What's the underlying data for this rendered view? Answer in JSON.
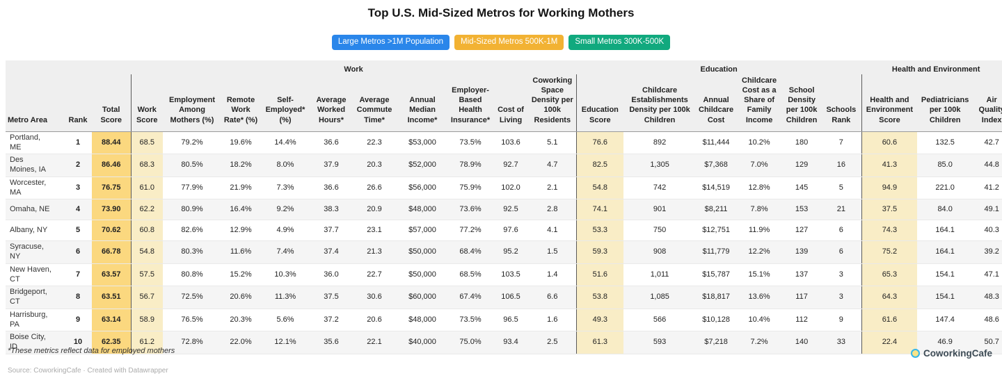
{
  "title": "Top U.S. Mid-Sized Metros for Working Mothers",
  "tabs": [
    {
      "label": "Large Metros >1M Population",
      "color": "#2a86ea",
      "active": false
    },
    {
      "label": "Mid-Sized Metros 500K-1M",
      "color": "#f2b233",
      "active": true
    },
    {
      "label": "Small Metros 300K-500K",
      "color": "#11a97e",
      "active": false
    }
  ],
  "chart_data": {
    "type": "table",
    "title": "Top U.S. Mid-Sized Metros for Working Mothers",
    "column_groups": [
      {
        "label": "",
        "span": 3
      },
      {
        "label": "Work",
        "span": 10
      },
      {
        "label": "Education",
        "span": 6
      },
      {
        "label": "Health and Environment",
        "span": 3
      }
    ],
    "columns": [
      "Metro Area",
      "Rank",
      "Total Score",
      "Work Score",
      "Employment Among Mothers (%)",
      "Remote Work Rate* (%)",
      "Self-Employed* (%)",
      "Average Worked Hours*",
      "Average Commute Time*",
      "Annual Median Income*",
      "Employer-Based Health Insurance*",
      "Cost of Living",
      "Coworking Space Density per 100k Residents",
      "Education Score",
      "Childcare Establishments Density per 100k Children",
      "Annual Childcare Cost",
      "Childcare Cost as a Share of Family Income",
      "School Density per 100k Children",
      "Schools Rank",
      "Health and Environment Score",
      "Pediatricians per 100k Children",
      "Air Quality Index"
    ],
    "rows": [
      [
        "Portland, ME",
        "1",
        "88.44",
        "68.5",
        "79.2%",
        "19.6%",
        "14.4%",
        "36.6",
        "22.3",
        "$53,000",
        "73.5%",
        "103.6",
        "5.1",
        "76.6",
        "892",
        "$11,444",
        "10.2%",
        "180",
        "7",
        "60.6",
        "132.5",
        "42.7"
      ],
      [
        "Des Moines, IA",
        "2",
        "86.46",
        "68.3",
        "80.5%",
        "18.2%",
        "8.0%",
        "37.9",
        "20.3",
        "$52,000",
        "78.9%",
        "92.7",
        "4.7",
        "82.5",
        "1,305",
        "$7,368",
        "7.0%",
        "129",
        "16",
        "41.3",
        "85.0",
        "44.8"
      ],
      [
        "Worcester, MA",
        "3",
        "76.75",
        "61.0",
        "77.9%",
        "21.9%",
        "7.3%",
        "36.6",
        "26.6",
        "$56,000",
        "75.9%",
        "102.0",
        "2.1",
        "54.8",
        "742",
        "$14,519",
        "12.8%",
        "145",
        "5",
        "94.9",
        "221.0",
        "41.2"
      ],
      [
        "Omaha, NE",
        "4",
        "73.90",
        "62.2",
        "80.9%",
        "16.4%",
        "9.2%",
        "38.3",
        "20.9",
        "$48,000",
        "73.6%",
        "92.5",
        "2.8",
        "74.1",
        "901",
        "$8,211",
        "7.8%",
        "153",
        "21",
        "37.5",
        "84.0",
        "49.1"
      ],
      [
        "Albany, NY",
        "5",
        "70.62",
        "60.8",
        "82.6%",
        "12.9%",
        "4.9%",
        "37.7",
        "23.1",
        "$57,000",
        "77.2%",
        "97.6",
        "4.1",
        "53.3",
        "750",
        "$12,751",
        "11.9%",
        "127",
        "6",
        "74.3",
        "164.1",
        "40.3"
      ],
      [
        "Syracuse, NY",
        "6",
        "66.78",
        "54.8",
        "80.3%",
        "11.6%",
        "7.4%",
        "37.4",
        "21.3",
        "$50,000",
        "68.4%",
        "95.2",
        "1.5",
        "59.3",
        "908",
        "$11,779",
        "12.2%",
        "139",
        "6",
        "75.2",
        "164.1",
        "39.2"
      ],
      [
        "New Haven, CT",
        "7",
        "63.57",
        "57.5",
        "80.8%",
        "15.2%",
        "10.3%",
        "36.0",
        "22.7",
        "$50,000",
        "68.5%",
        "103.5",
        "1.4",
        "51.6",
        "1,011",
        "$15,787",
        "15.1%",
        "137",
        "3",
        "65.3",
        "154.1",
        "47.1"
      ],
      [
        "Bridgeport, CT",
        "8",
        "63.51",
        "56.7",
        "72.5%",
        "20.6%",
        "11.3%",
        "37.5",
        "30.6",
        "$60,000",
        "67.4%",
        "106.5",
        "6.6",
        "53.8",
        "1,085",
        "$18,817",
        "13.6%",
        "117",
        "3",
        "64.3",
        "154.1",
        "48.3"
      ],
      [
        "Harrisburg, PA",
        "9",
        "63.14",
        "58.9",
        "76.5%",
        "20.3%",
        "5.6%",
        "37.2",
        "20.6",
        "$48,000",
        "73.5%",
        "96.5",
        "1.6",
        "49.3",
        "566",
        "$10,128",
        "10.4%",
        "112",
        "9",
        "61.6",
        "147.4",
        "48.6"
      ],
      [
        "Boise City, ID",
        "10",
        "62.35",
        "61.2",
        "72.8%",
        "22.0%",
        "12.1%",
        "35.6",
        "22.1",
        "$40,000",
        "75.0%",
        "93.4",
        "2.5",
        "61.3",
        "593",
        "$7,218",
        "7.2%",
        "140",
        "33",
        "22.4",
        "46.9",
        "50.7"
      ]
    ],
    "highlight_colors": {
      "total_score_bg": "#fbd87f",
      "score_bg": "#f9edc6"
    },
    "layout_hints": {
      "striped_rows": true,
      "group_separators_before_columns": [
        "Work Score",
        "Education Score",
        "Health and Environment Score"
      ]
    }
  },
  "footer": {
    "footnote": "*These metrics reflect data for employed mothers",
    "source_prefix": "Source: CoworkingCafe",
    "separator": "·",
    "attribution": "Created with Datawrapper",
    "logo_text": "CoworkingCafe"
  }
}
